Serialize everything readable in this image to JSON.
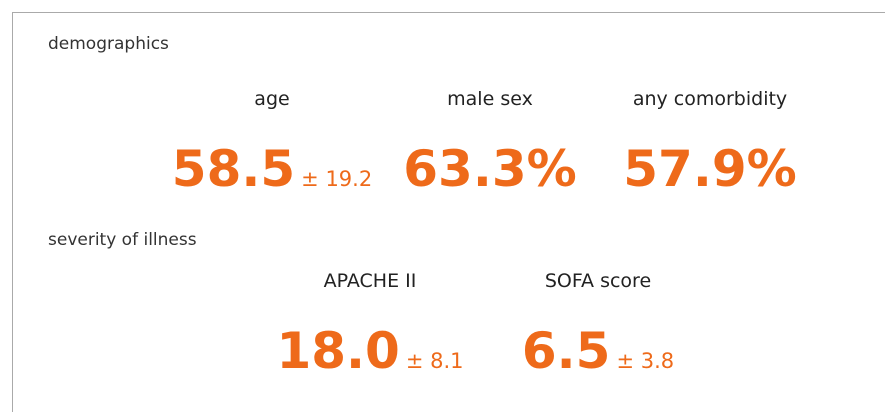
{
  "sections": [
    {
      "title": "demographics",
      "stats": [
        {
          "label": "age",
          "value": "58.5",
          "sd": "± 19.2"
        },
        {
          "label": "male sex",
          "value": "63.3%"
        },
        {
          "label": "any comorbidity",
          "value": "57.9%"
        }
      ]
    },
    {
      "title": "severity of illness",
      "stats": [
        {
          "label": "APACHE II",
          "value": "18.0",
          "sd": "± 8.1"
        },
        {
          "label": "SOFA score",
          "value": "6.5",
          "sd": "± 3.8"
        }
      ]
    }
  ]
}
